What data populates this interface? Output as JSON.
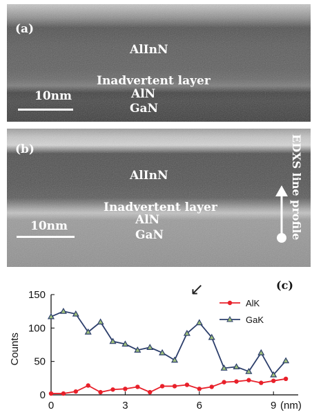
{
  "figure": {
    "panel_a": {
      "tag": "(a)",
      "labels": {
        "top_layer": "AlInN",
        "interlayer": "Inadvertent layer",
        "middle_layer": "AlN",
        "bottom_layer": "GaN"
      },
      "scalebar_label": "10nm"
    },
    "panel_b": {
      "tag": "(b)",
      "labels": {
        "top_layer": "AlInN",
        "interlayer": "Inadvertent layer",
        "middle_layer": "AlN",
        "bottom_layer": "GaN"
      },
      "scalebar_label": "10nm",
      "side_label": "EDXS line profile"
    },
    "panel_c": {
      "tag": "(c)",
      "arrow_glyph": "↙"
    }
  },
  "chart_data": {
    "type": "line",
    "xlabel": "(nm)",
    "ylabel": "Counts",
    "xlim": [
      0,
      10
    ],
    "ylim": [
      0,
      150
    ],
    "x_ticks": [
      0,
      3,
      6,
      9
    ],
    "y_ticks": [
      0,
      50,
      100,
      150
    ],
    "legend_position": "top-right",
    "grid": false,
    "series": [
      {
        "name": "AlK",
        "color": "#e8202a",
        "marker": "circle",
        "x": [
          0,
          0.5,
          1,
          1.5,
          2,
          2.5,
          3,
          3.5,
          4,
          4.5,
          5,
          5.5,
          6,
          6.5,
          7,
          7.5,
          8,
          8.5,
          9,
          9.5
        ],
        "y": [
          2,
          2,
          5,
          14,
          4,
          8,
          9,
          12,
          4,
          13,
          13,
          15,
          9,
          12,
          19,
          20,
          22,
          18,
          21,
          24
        ]
      },
      {
        "name": "GaK",
        "color": "#2c3e6b",
        "marker": "triangle",
        "x": [
          0,
          0.5,
          1,
          1.5,
          2,
          2.5,
          3,
          3.5,
          4,
          4.5,
          5,
          5.5,
          6,
          6.5,
          7,
          7.5,
          8,
          8.5,
          9,
          9.5
        ],
        "y": [
          117,
          125,
          121,
          94,
          109,
          80,
          76,
          67,
          71,
          63,
          52,
          92,
          108,
          86,
          40,
          42,
          35,
          63,
          30,
          51
        ]
      }
    ]
  }
}
